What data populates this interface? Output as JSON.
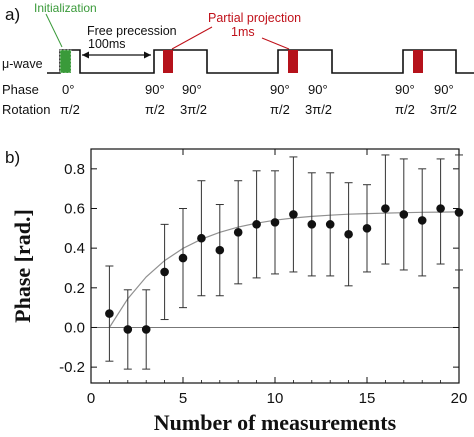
{
  "panel_a": {
    "label": "a)",
    "init_label": "Initialization",
    "free_label": "Free precession",
    "free_time": "100ms",
    "partial_label": "Partial projection",
    "partial_time": "1ms",
    "row_uwave": "μ-wave",
    "row_phase": "Phase",
    "row_rotation": "Rotation",
    "phase_values": [
      "0°",
      "90°",
      "90°",
      "90°",
      "90°",
      "90°",
      "90°"
    ],
    "rotation_values": [
      "π/2",
      "π/2",
      "3π/2",
      "π/2",
      "3π/2",
      "π/2",
      "3π/2"
    ],
    "colors": {
      "init": "#3a9a3a",
      "partial": "#c0111a",
      "pulse_fill": "#b5121b"
    }
  },
  "chart_data": {
    "panel_label": "b)",
    "type": "scatter",
    "xlabel": "Number of measurements",
    "ylabel": "Phase [rad.]",
    "xlim": [
      0,
      20
    ],
    "ylim": [
      -0.28,
      0.9
    ],
    "xticks": [
      0,
      5,
      10,
      15,
      20
    ],
    "yticks": [
      -0.2,
      0.0,
      0.2,
      0.4,
      0.6,
      0.8
    ],
    "ytick_labels": [
      "-0.2",
      "0.0",
      "0.2",
      "0.4",
      "0.6",
      "0.8"
    ],
    "zero_line": true,
    "series": [
      {
        "x": [
          1,
          2,
          3,
          4,
          5,
          6,
          7,
          8,
          9,
          10,
          11,
          12,
          13,
          14,
          15,
          16,
          17,
          18,
          19,
          20
        ],
        "y": [
          0.07,
          -0.01,
          -0.01,
          0.28,
          0.35,
          0.45,
          0.39,
          0.48,
          0.52,
          0.53,
          0.57,
          0.52,
          0.52,
          0.47,
          0.5,
          0.6,
          0.57,
          0.54,
          0.6,
          0.58
        ],
        "err_low": [
          0.24,
          0.2,
          0.2,
          0.24,
          0.25,
          0.29,
          0.23,
          0.26,
          0.27,
          0.26,
          0.29,
          0.26,
          0.26,
          0.26,
          0.22,
          0.28,
          0.28,
          0.28,
          0.28,
          0.29
        ],
        "err_high": [
          0.24,
          0.2,
          0.2,
          0.24,
          0.25,
          0.29,
          0.23,
          0.26,
          0.27,
          0.26,
          0.29,
          0.26,
          0.26,
          0.26,
          0.22,
          0.27,
          0.28,
          0.26,
          0.25,
          0.29
        ],
        "color": "#111111"
      }
    ],
    "fit_curve": {
      "x": [
        1,
        2,
        3,
        4,
        5,
        6,
        7,
        8,
        9,
        10,
        11,
        12,
        13,
        14,
        15,
        16,
        17,
        18,
        19,
        20
      ],
      "y": [
        0.0,
        0.145,
        0.255,
        0.337,
        0.399,
        0.445,
        0.48,
        0.506,
        0.526,
        0.541,
        0.552,
        0.56,
        0.566,
        0.571,
        0.574,
        0.577,
        0.579,
        0.581,
        0.582,
        0.583
      ],
      "color": "#909090"
    }
  }
}
